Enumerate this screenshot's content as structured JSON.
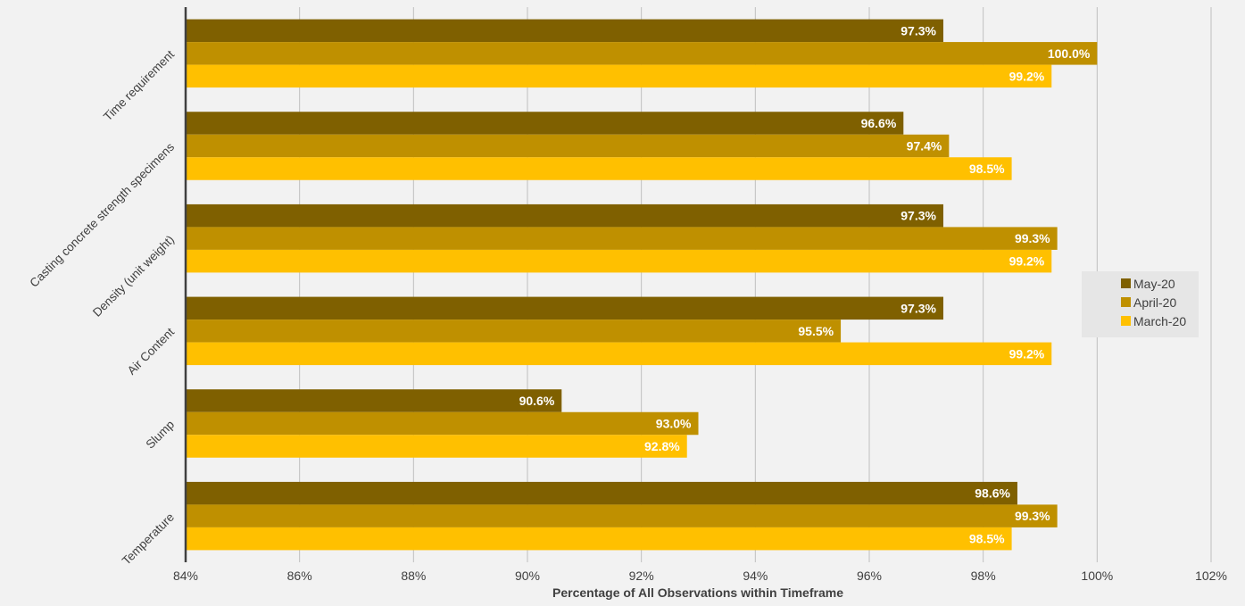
{
  "chart_data": {
    "type": "bar",
    "orientation": "horizontal",
    "categories": [
      "Temperature",
      "Slump",
      "Air Content",
      "Density (unit weight)",
      "Casting concrete strength specimens",
      "Time requirement"
    ],
    "series": [
      {
        "name": "May-20",
        "color": "#7f6000",
        "values": [
          98.6,
          90.6,
          97.3,
          97.3,
          96.6,
          97.3
        ],
        "labels": [
          "98.6%",
          "90.6%",
          "97.3%",
          "97.3%",
          "96.6%",
          "97.3%"
        ]
      },
      {
        "name": "April-20",
        "color": "#bf9000",
        "values": [
          99.3,
          93.0,
          95.5,
          99.3,
          97.4,
          100.0
        ],
        "labels": [
          "99.3%",
          "93.0%",
          "95.5%",
          "99.3%",
          "97.4%",
          "100.0%"
        ]
      },
      {
        "name": "March-20",
        "color": "#ffc000",
        "values": [
          98.5,
          92.8,
          99.2,
          99.2,
          98.5,
          99.2
        ],
        "labels": [
          "98.5%",
          "92.8%",
          "99.2%",
          "99.2%",
          "98.5%",
          "99.2%"
        ]
      }
    ],
    "xlim": [
      84,
      102
    ],
    "xticks": [
      84,
      86,
      88,
      90,
      92,
      94,
      96,
      98,
      100,
      102
    ],
    "xtick_labels": [
      "84%",
      "86%",
      "88%",
      "90%",
      "92%",
      "94%",
      "96%",
      "98%",
      "100%",
      "102%"
    ],
    "xlabel": "Percentage of All Observations within Timeframe",
    "ylabel": "",
    "grid": true,
    "legend": "right",
    "legend_background": "#e6e6e6",
    "data_label_color": "#ffffff"
  }
}
